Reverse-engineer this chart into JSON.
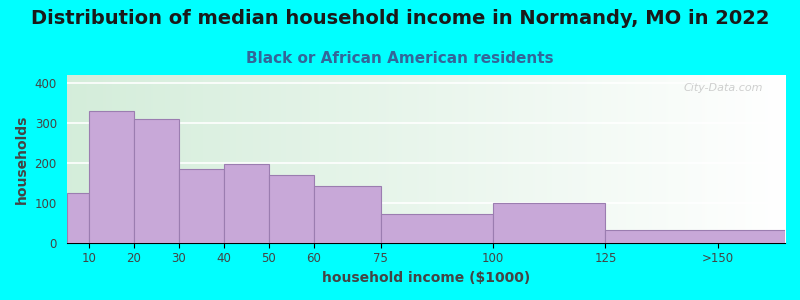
{
  "title": "Distribution of median household income in Normandy, MO in 2022",
  "subtitle": "Black or African American residents",
  "xlabel": "household income ($1000)",
  "ylabel": "households",
  "background_color": "#00FFFF",
  "bar_color": "#C8A8D8",
  "bar_edge_color": "#9B7DB0",
  "watermark_text": "City-Data.com",
  "categories": [
    "10",
    "20",
    "30",
    "40",
    "50",
    "60",
    "75",
    "100",
    "125",
    ">150"
  ],
  "left_edges": [
    5,
    10,
    20,
    30,
    40,
    50,
    60,
    75,
    100,
    125
  ],
  "right_edges": [
    10,
    20,
    30,
    40,
    50,
    60,
    75,
    100,
    125,
    165
  ],
  "values": [
    125,
    330,
    310,
    185,
    197,
    170,
    143,
    72,
    100,
    32
  ],
  "xlim": [
    5,
    165
  ],
  "ylim": [
    0,
    420
  ],
  "yticks": [
    0,
    100,
    200,
    300,
    400
  ],
  "xtick_positions": [
    10,
    20,
    30,
    40,
    50,
    60,
    75,
    100,
    125,
    150
  ],
  "xtick_labels": [
    "10",
    "20",
    "30",
    "40",
    "50",
    "60",
    "75",
    "100",
    "125",
    ">150"
  ],
  "title_fontsize": 14,
  "subtitle_fontsize": 11,
  "axis_label_fontsize": 10
}
